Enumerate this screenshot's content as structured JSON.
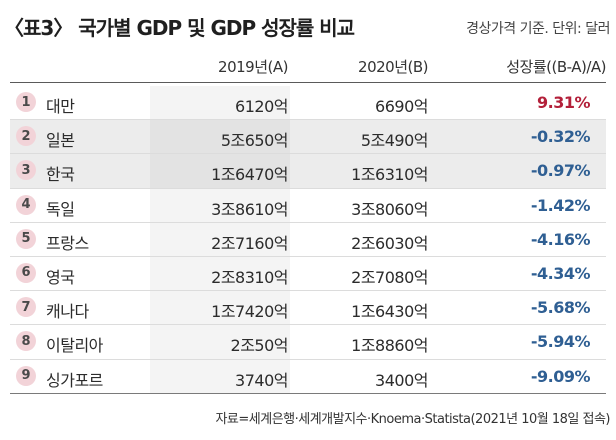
{
  "header": {
    "title": "〈표3〉 국가별 GDP 및  GDP 성장률 비교",
    "unit_note": "경상가격 기준. 단위: 달러"
  },
  "columns": {
    "y2019": "2019년(A)",
    "y2020": "2020년(B)",
    "rate": "성장률((B-A)/A)"
  },
  "rows": [
    {
      "rank": "1",
      "country": "대만",
      "v2019": "6120억",
      "v2020": "6690억",
      "rate": "9.31%",
      "rate_sign": "positive"
    },
    {
      "rank": "2",
      "country": "일본",
      "v2019": "5조650억",
      "v2020": "5조490억",
      "rate": "-0.32%",
      "rate_sign": "negative"
    },
    {
      "rank": "3",
      "country": "한국",
      "v2019": "1조6470억",
      "v2020": "1조6310억",
      "rate": "-0.97%",
      "rate_sign": "negative"
    },
    {
      "rank": "4",
      "country": "독일",
      "v2019": "3조8610억",
      "v2020": "3조8060억",
      "rate": "-1.42%",
      "rate_sign": "negative"
    },
    {
      "rank": "5",
      "country": "프랑스",
      "v2019": "2조7160억",
      "v2020": "2조6030억",
      "rate": "-4.16%",
      "rate_sign": "negative"
    },
    {
      "rank": "6",
      "country": "영국",
      "v2019": "2조8310억",
      "v2020": "2조7080억",
      "rate": "-4.34%",
      "rate_sign": "negative"
    },
    {
      "rank": "7",
      "country": "캐나다",
      "v2019": "1조7420억",
      "v2020": "1조6430억",
      "rate": "-5.68%",
      "rate_sign": "negative"
    },
    {
      "rank": "8",
      "country": "이탈리아",
      "v2019": "2조50억",
      "v2020": "1조8860억",
      "rate": "-5.94%",
      "rate_sign": "negative"
    },
    {
      "rank": "9",
      "country": "싱가포르",
      "v2019": "3740억",
      "v2020": "3400억",
      "rate": "-9.09%",
      "rate_sign": "negative"
    }
  ],
  "source": "자료=세계은행·세계개발지수·Knoema·Statista(2021년 10월 18일 접속)",
  "colors": {
    "positive": "#b3203a",
    "negative": "#2f5f93",
    "badge": "#f2d3d8",
    "shade": "#ececec"
  }
}
